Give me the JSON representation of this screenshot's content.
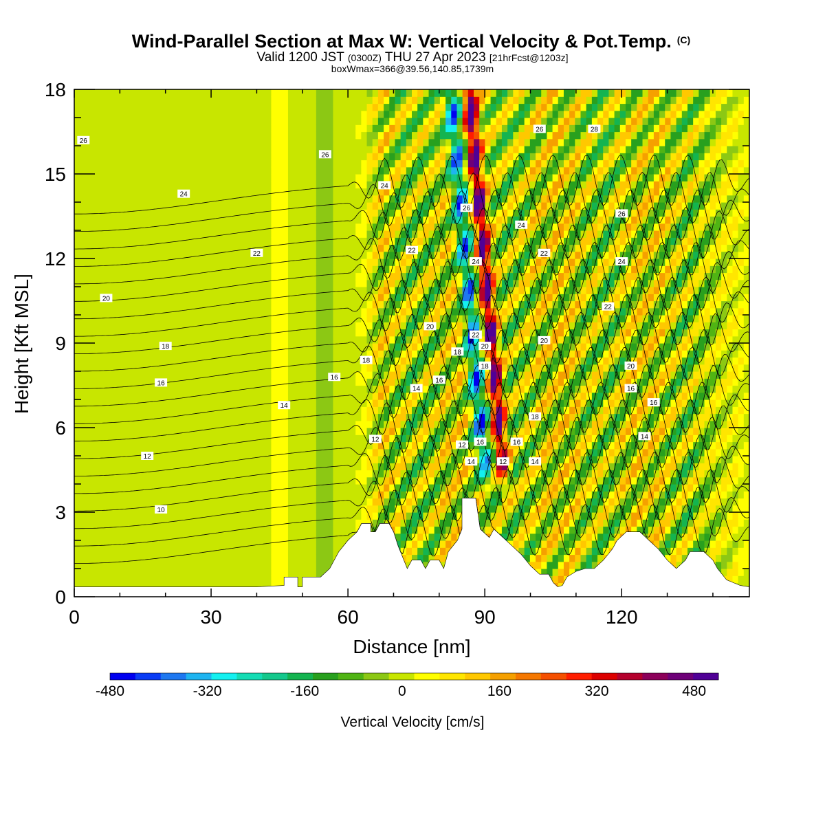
{
  "chart_data": {
    "type": "heatmap",
    "title": "Wind-Parallel Section at Max W: Vertical Velocity & Pot.Temp.",
    "title_mark": "(C)",
    "subtitle_parts": [
      "Valid 1200 JST ",
      "(0300Z)",
      " THU 27 Apr 2023 ",
      "[21hrFcst@1203z]"
    ],
    "subtitle2": "boxWmax=366@39.56,140.85,1739m",
    "xlabel": "Distance [nm]",
    "ylabel": "Height [Kft MSL]",
    "xlim": [
      0,
      148
    ],
    "ylim": [
      0,
      18
    ],
    "x_ticks": [
      0,
      30,
      60,
      90,
      120
    ],
    "y_ticks": [
      0,
      3,
      6,
      9,
      12,
      15,
      18
    ],
    "colorbar": {
      "label": "Vertical Velocity [cm/s]",
      "range": [
        -480,
        520
      ],
      "tick_labels": [
        -480,
        -320,
        -160,
        0,
        160,
        320,
        480
      ],
      "colors": [
        "#0000f0",
        "#0a3cf5",
        "#1e78f0",
        "#1eb4f0",
        "#14f0f0",
        "#14dcb4",
        "#14c88c",
        "#14b450",
        "#28a01e",
        "#50b414",
        "#8cc814",
        "#c8e600",
        "#ffff00",
        "#ffe600",
        "#ffc800",
        "#f5a000",
        "#f57800",
        "#f55000",
        "#ff1e00",
        "#dc0000",
        "#b4002d",
        "#8c005a",
        "#6e0078",
        "#500096"
      ]
    },
    "terrain_kft": [
      [
        0,
        0.35
      ],
      [
        10,
        0.35
      ],
      [
        20,
        0.35
      ],
      [
        30,
        0.35
      ],
      [
        40,
        0.35
      ],
      [
        46,
        0.4
      ],
      [
        46,
        0.7
      ],
      [
        49,
        0.7
      ],
      [
        49,
        0.35
      ],
      [
        50,
        0.35
      ],
      [
        50,
        0.7
      ],
      [
        54,
        0.7
      ],
      [
        56,
        1.0
      ],
      [
        58,
        1.6
      ],
      [
        60,
        2.0
      ],
      [
        62,
        2.3
      ],
      [
        63,
        2.6
      ],
      [
        65,
        2.6
      ],
      [
        65,
        2.3
      ],
      [
        66,
        2.3
      ],
      [
        67,
        2.6
      ],
      [
        69,
        2.6
      ],
      [
        70,
        2.3
      ],
      [
        71,
        1.8
      ],
      [
        73,
        1.0
      ],
      [
        74,
        1.3
      ],
      [
        76,
        1.3
      ],
      [
        77,
        1.0
      ],
      [
        78,
        1.3
      ],
      [
        80,
        1.3
      ],
      [
        81,
        1.0
      ],
      [
        82,
        1.6
      ],
      [
        84,
        2.0
      ],
      [
        85,
        2.4
      ],
      [
        85,
        3.5
      ],
      [
        88,
        3.5
      ],
      [
        89,
        2.4
      ],
      [
        91,
        2.1
      ],
      [
        92,
        2.4
      ],
      [
        94,
        2.1
      ],
      [
        96,
        1.8
      ],
      [
        98,
        1.5
      ],
      [
        100,
        1.1
      ],
      [
        102,
        0.8
      ],
      [
        104,
        0.8
      ],
      [
        105,
        0.5
      ],
      [
        106,
        0.35
      ],
      [
        107,
        0.4
      ],
      [
        108,
        0.7
      ],
      [
        110,
        0.9
      ],
      [
        112,
        1.0
      ],
      [
        114,
        1.0
      ],
      [
        116,
        1.3
      ],
      [
        118,
        1.7
      ],
      [
        119,
        2.0
      ],
      [
        121,
        2.3
      ],
      [
        124,
        2.3
      ],
      [
        126,
        2.0
      ],
      [
        128,
        1.7
      ],
      [
        130,
        1.3
      ],
      [
        132,
        1.0
      ],
      [
        134,
        1.3
      ],
      [
        135,
        1.6
      ],
      [
        138,
        1.6
      ],
      [
        140,
        1.3
      ],
      [
        141,
        1.0
      ],
      [
        143,
        0.6
      ],
      [
        146,
        0.4
      ],
      [
        148,
        0.35
      ]
    ],
    "isentropes": [
      {
        "label": "10",
        "label_at": [
          19,
          3.1
        ]
      },
      {
        "label": "12",
        "label_at": [
          16,
          5.0
        ]
      },
      {
        "label": "14",
        "label_at": [
          46,
          6.8
        ]
      },
      {
        "label": "16",
        "label_at": [
          19,
          7.6
        ]
      },
      {
        "label": "18",
        "label_at": [
          20,
          8.9
        ]
      },
      {
        "label": "20",
        "label_at": [
          7,
          10.6
        ]
      },
      {
        "label": "22",
        "label_at": [
          40,
          12.2
        ]
      },
      {
        "label": "24",
        "label_at": [
          24,
          14.3
        ]
      },
      {
        "label": "26",
        "label_at": [
          2,
          16.2
        ]
      }
    ],
    "plume_labels": [
      {
        "label": "12",
        "at": [
          66,
          5.6
        ]
      },
      {
        "label": "14",
        "at": [
          75,
          7.4
        ]
      },
      {
        "label": "16",
        "at": [
          57,
          7.8
        ]
      },
      {
        "label": "18",
        "at": [
          64,
          8.4
        ]
      },
      {
        "label": "20",
        "at": [
          78,
          9.6
        ]
      },
      {
        "label": "22",
        "at": [
          74,
          12.3
        ]
      },
      {
        "label": "24",
        "at": [
          68,
          14.6
        ]
      },
      {
        "label": "26",
        "at": [
          55,
          15.7
        ]
      },
      {
        "label": "12",
        "at": [
          85,
          5.4
        ]
      },
      {
        "label": "14",
        "at": [
          87,
          4.8
        ]
      },
      {
        "label": "16",
        "at": [
          80,
          7.7
        ]
      },
      {
        "label": "18",
        "at": [
          84,
          8.7
        ]
      },
      {
        "label": "20",
        "at": [
          90,
          8.9
        ]
      },
      {
        "label": "18",
        "at": [
          90,
          8.2
        ]
      },
      {
        "label": "16",
        "at": [
          89,
          5.5
        ]
      },
      {
        "label": "22",
        "at": [
          88,
          9.3
        ]
      },
      {
        "label": "24",
        "at": [
          88,
          11.9
        ]
      },
      {
        "label": "26",
        "at": [
          86,
          13.8
        ]
      },
      {
        "label": "24",
        "at": [
          98,
          13.2
        ]
      },
      {
        "label": "26",
        "at": [
          102,
          16.6
        ]
      },
      {
        "label": "28",
        "at": [
          114,
          16.6
        ]
      },
      {
        "label": "22",
        "at": [
          103,
          12.2
        ]
      },
      {
        "label": "20",
        "at": [
          103,
          9.1
        ]
      },
      {
        "label": "18",
        "at": [
          101,
          6.4
        ]
      },
      {
        "label": "16",
        "at": [
          97,
          5.5
        ]
      },
      {
        "label": "14",
        "at": [
          101,
          4.8
        ]
      },
      {
        "label": "12",
        "at": [
          94,
          4.8
        ]
      },
      {
        "label": "26",
        "at": [
          120,
          13.6
        ]
      },
      {
        "label": "24",
        "at": [
          120,
          11.9
        ]
      },
      {
        "label": "22",
        "at": [
          117,
          10.3
        ]
      },
      {
        "label": "20",
        "at": [
          122,
          8.2
        ]
      },
      {
        "label": "16",
        "at": [
          122,
          7.4
        ]
      },
      {
        "label": "16",
        "at": [
          127,
          6.9
        ]
      },
      {
        "label": "14",
        "at": [
          125,
          5.7
        ]
      }
    ]
  }
}
